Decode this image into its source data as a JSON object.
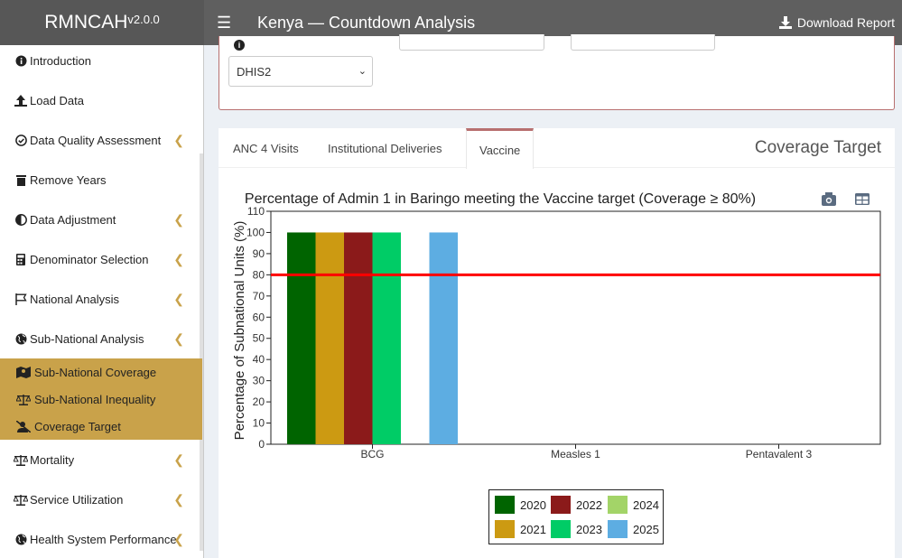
{
  "header": {
    "logo": "RMNCAH",
    "version": "v2.0.0",
    "title": "Kenya — Countdown Analysis",
    "download_label": "Download Report"
  },
  "sidebar": {
    "items": [
      {
        "label": "Introduction",
        "icon": "info-circle-icon"
      },
      {
        "label": "Load Data",
        "icon": "upload-icon"
      },
      {
        "label": "Data Quality Assessment",
        "icon": "check-circle-icon"
      },
      {
        "label": "Remove Years",
        "icon": "trash-icon"
      },
      {
        "label": "Data Adjustment",
        "icon": "adjust-icon"
      },
      {
        "label": "Denominator Selection",
        "icon": "calculator-icon"
      },
      {
        "label": "National Analysis",
        "icon": "flag-icon"
      },
      {
        "label": "Sub-National Analysis",
        "icon": "globe-icon"
      },
      {
        "label": "Mortality",
        "icon": "scale-icon"
      },
      {
        "label": "Service Utilization",
        "icon": "scale-icon"
      },
      {
        "label": "Health System Performance",
        "icon": "globe-icon"
      }
    ],
    "subitems": [
      {
        "label": "Sub-National Coverage",
        "icon": "map-icon"
      },
      {
        "label": "Sub-National Inequality",
        "icon": "scale-icon"
      },
      {
        "label": "Coverage Target",
        "icon": "user-slash-icon"
      }
    ]
  },
  "filters": {
    "source_select": "DHIS2"
  },
  "tabs": [
    {
      "label": "ANC 4 Visits"
    },
    {
      "label": "Institutional Deliveries"
    },
    {
      "label": "Vaccine"
    }
  ],
  "tab_title": "Coverage Target",
  "colors": {
    "2020": "#006400",
    "2021": "#cc9a12",
    "2022": "#8b1a1a",
    "2023": "#00cc66",
    "2024": "#a3d468",
    "2025": "#5dade2",
    "target_line": "#ff0000",
    "accent": "#c9a24a"
  },
  "chart_data": {
    "type": "bar",
    "title": "Percentage of Admin 1 in Baringo meeting the Vaccine target (Coverage ≥ 80%)",
    "ylabel": "Percentage of Subnational Units (%)",
    "xlabel": "",
    "categories": [
      "BCG",
      "Measles 1",
      "Pentavalent 3"
    ],
    "ylim": [
      0,
      110
    ],
    "yticks": [
      0,
      10,
      20,
      30,
      40,
      50,
      60,
      70,
      80,
      90,
      100,
      110
    ],
    "target": 80,
    "series": [
      {
        "name": "2020",
        "values": [
          100,
          null,
          null
        ]
      },
      {
        "name": "2021",
        "values": [
          100,
          null,
          null
        ]
      },
      {
        "name": "2022",
        "values": [
          100,
          null,
          null
        ]
      },
      {
        "name": "2023",
        "values": [
          100,
          null,
          null
        ]
      },
      {
        "name": "2024",
        "values": [
          null,
          null,
          null
        ]
      },
      {
        "name": "2025",
        "values": [
          100,
          null,
          null
        ]
      }
    ],
    "legend_position": "bottom-center",
    "grid": false
  }
}
